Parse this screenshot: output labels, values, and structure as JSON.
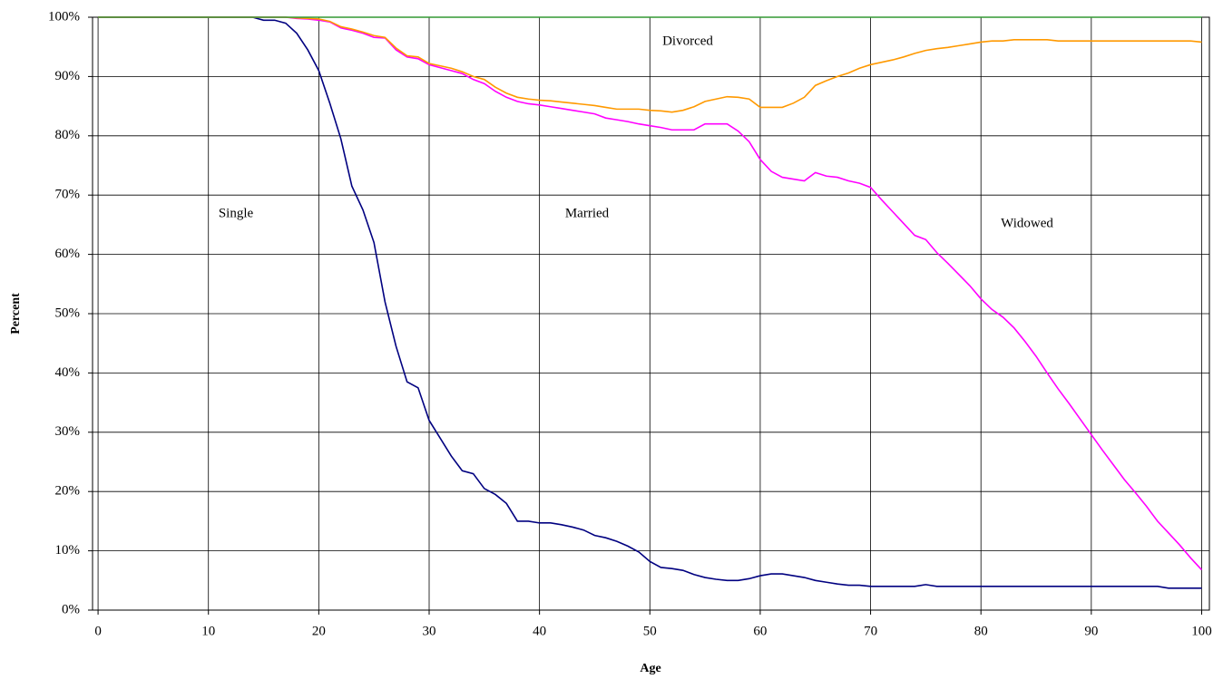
{
  "chart_data": {
    "type": "line",
    "y_label": "Percent",
    "x_label": "Age",
    "annotations": [
      "Single",
      "Married",
      "Divorced",
      "Widowed"
    ],
    "x": [
      0,
      1,
      2,
      3,
      4,
      5,
      6,
      7,
      8,
      9,
      10,
      11,
      12,
      13,
      14,
      15,
      16,
      17,
      18,
      19,
      20,
      21,
      22,
      23,
      24,
      25,
      26,
      27,
      28,
      29,
      30,
      31,
      32,
      33,
      34,
      35,
      36,
      37,
      38,
      39,
      40,
      41,
      42,
      43,
      44,
      45,
      46,
      47,
      48,
      49,
      50,
      51,
      52,
      53,
      54,
      55,
      56,
      57,
      58,
      59,
      60,
      61,
      62,
      63,
      64,
      65,
      66,
      67,
      68,
      69,
      70,
      71,
      72,
      73,
      74,
      75,
      76,
      77,
      78,
      79,
      80,
      81,
      82,
      83,
      84,
      85,
      86,
      87,
      88,
      89,
      90,
      91,
      92,
      93,
      94,
      95,
      96,
      97,
      98,
      99,
      100
    ],
    "series": [
      {
        "color": "#000080",
        "values": [
          100,
          100,
          100,
          100,
          100,
          100,
          100,
          100,
          100,
          100,
          100,
          100,
          100,
          100,
          100,
          99.5,
          99.5,
          99,
          97.3,
          94.5,
          91,
          85.5,
          79.5,
          71.5,
          67.5,
          62,
          52,
          44.5,
          38.5,
          37.5,
          32,
          29,
          26,
          23.5,
          23,
          20.5,
          19.5,
          18,
          15,
          15,
          14.7,
          14.7,
          14.4,
          14,
          13.5,
          12.6,
          12.2,
          11.6,
          10.8,
          9.8,
          8.2,
          7.2,
          7,
          6.7,
          6,
          5.5,
          5.2,
          5,
          5,
          5.3,
          5.8,
          6.1,
          6.1,
          5.8,
          5.5,
          5,
          4.7,
          4.4,
          4.2,
          4.2,
          4,
          4,
          4,
          4,
          4,
          4.3,
          4,
          4,
          4,
          4,
          4,
          4,
          4,
          4,
          4,
          4,
          4,
          4,
          4,
          4,
          4,
          4,
          4,
          4,
          4,
          4,
          4,
          3.7,
          3.7,
          3.7,
          3.7
        ]
      },
      {
        "color": "#ff00ff",
        "values": [
          100,
          100,
          100,
          100,
          100,
          100,
          100,
          100,
          100,
          100,
          100,
          100,
          100,
          100,
          100,
          100,
          100,
          100,
          99.8,
          99.7,
          99.5,
          99.2,
          98.2,
          97.8,
          97.3,
          96.6,
          96.5,
          94.5,
          93.3,
          93,
          92,
          91.5,
          91,
          90.5,
          89.5,
          88.8,
          87.5,
          86.5,
          85.8,
          85.4,
          85.2,
          84.9,
          84.6,
          84.3,
          84,
          83.7,
          83,
          82.7,
          82.4,
          82,
          81.7,
          81.4,
          81,
          81,
          81,
          82,
          82,
          82,
          80.8,
          79,
          76,
          74,
          73,
          72.7,
          72.4,
          73.8,
          73.2,
          73,
          72.4,
          72,
          71.3,
          69.2,
          67.2,
          65.2,
          63.2,
          62.5,
          60.3,
          58.5,
          56.6,
          54.7,
          52.5,
          50.7,
          49.4,
          47.6,
          45.3,
          42.8,
          40,
          37.3,
          34.8,
          32.2,
          29.6,
          27,
          24.5,
          22,
          19.8,
          17.5,
          15,
          13,
          11,
          8.8,
          6.8
        ]
      },
      {
        "color": "#ff9900",
        "values": [
          100,
          100,
          100,
          100,
          100,
          100,
          100,
          100,
          100,
          100,
          100,
          100,
          100,
          100,
          100,
          100,
          100,
          100,
          99.9,
          99.8,
          99.7,
          99.3,
          98.4,
          98,
          97.5,
          96.9,
          96.6,
          94.8,
          93.5,
          93.3,
          92.2,
          91.8,
          91.4,
          90.8,
          90,
          89.5,
          88.2,
          87.2,
          86.5,
          86.2,
          86,
          85.9,
          85.7,
          85.5,
          85.3,
          85.1,
          84.8,
          84.5,
          84.5,
          84.5,
          84.3,
          84.2,
          84,
          84.3,
          84.9,
          85.8,
          86.2,
          86.6,
          86.5,
          86.2,
          84.8,
          84.8,
          84.8,
          85.5,
          86.5,
          88.5,
          89.3,
          90,
          90.6,
          91.4,
          92,
          92.4,
          92.8,
          93.3,
          93.9,
          94.4,
          94.7,
          94.9,
          95.2,
          95.5,
          95.8,
          96,
          96,
          96.2,
          96.2,
          96.2,
          96.2,
          96,
          96,
          96,
          96,
          96,
          96,
          96,
          96,
          96,
          96,
          96,
          96,
          96,
          95.8
        ]
      },
      {
        "color": "#339933",
        "values": [
          100,
          100,
          100,
          100,
          100,
          100,
          100,
          100,
          100,
          100,
          100,
          100,
          100,
          100,
          100,
          100,
          100,
          100,
          100,
          100,
          100,
          100,
          100,
          100,
          100,
          100,
          100,
          100,
          100,
          100,
          100,
          100,
          100,
          100,
          100,
          100,
          100,
          100,
          100,
          100,
          100,
          100,
          100,
          100,
          100,
          100,
          100,
          100,
          100,
          100,
          100,
          100,
          100,
          100,
          100,
          100,
          100,
          100,
          100,
          100,
          100,
          100,
          100,
          100,
          100,
          100,
          100,
          100,
          100,
          100,
          100,
          100,
          100,
          100,
          100,
          100,
          100,
          100,
          100,
          100,
          100,
          100,
          100,
          100,
          100,
          100,
          100,
          100,
          100,
          100,
          100,
          100,
          100,
          100,
          100,
          100,
          100,
          100,
          100,
          100,
          100
        ]
      }
    ],
    "xlim": [
      -0.5,
      100.7
    ],
    "xticks": [
      0,
      10,
      20,
      30,
      40,
      50,
      60,
      70,
      80,
      90,
      100
    ],
    "ylim": [
      0,
      100
    ],
    "yticks": [
      {
        "value": 0,
        "label": "0%"
      },
      {
        "value": 10,
        "label": "10%"
      },
      {
        "value": 20,
        "label": "20%"
      },
      {
        "value": 30,
        "label": "30%"
      },
      {
        "value": 40,
        "label": "40%"
      },
      {
        "value": 50,
        "label": "50%"
      },
      {
        "value": 60,
        "label": "60%"
      },
      {
        "value": 70,
        "label": "70%"
      },
      {
        "value": 80,
        "label": "80%"
      },
      {
        "value": 90,
        "label": "90%"
      },
      {
        "value": 100,
        "label": "100%"
      }
    ],
    "grid": true
  }
}
